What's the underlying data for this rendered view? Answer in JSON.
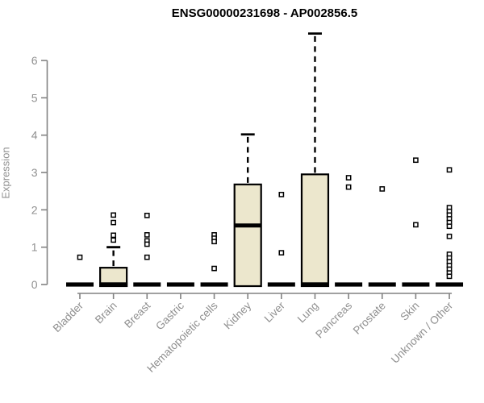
{
  "title": "ENSG00000231698 - AP002856.5",
  "chart_data": {
    "type": "boxplot",
    "title": "ENSG00000231698 - AP002856.5",
    "xlabel": "",
    "ylabel": "Expression",
    "ylim": [
      0,
      6.8
    ],
    "yticks": [
      0,
      1,
      2,
      3,
      4,
      5,
      6
    ],
    "grid": false,
    "legend": "none",
    "categories": [
      "Bladder",
      "Brain",
      "Breast",
      "Gastric",
      "Hematopoietic cells",
      "Kidney",
      "Liver",
      "Lung",
      "Pancreas",
      "Prostate",
      "Skin",
      "Unknown / Other"
    ],
    "boxes": [
      {
        "category": "Bladder",
        "q1": 0,
        "median": 0,
        "q3": 0,
        "whisker_low": 0,
        "whisker_high": 0,
        "outliers": [
          0.73
        ]
      },
      {
        "category": "Brain",
        "q1": 0,
        "median": 0,
        "q3": 0.45,
        "whisker_low": 0,
        "whisker_high": 1.0,
        "outliers": [
          1.86,
          1.66,
          1.32,
          1.19
        ]
      },
      {
        "category": "Breast",
        "q1": 0,
        "median": 0,
        "q3": 0,
        "whisker_low": 0,
        "whisker_high": 0,
        "outliers": [
          1.85,
          1.33,
          1.17,
          1.08,
          0.73
        ]
      },
      {
        "category": "Gastric",
        "q1": 0,
        "median": 0,
        "q3": 0,
        "whisker_low": 0,
        "whisker_high": 0,
        "outliers": []
      },
      {
        "category": "Hematopoietic cells",
        "q1": 0,
        "median": 0,
        "q3": 0,
        "whisker_low": 0,
        "whisker_high": 0,
        "outliers": [
          1.33,
          1.24,
          1.15,
          0.43
        ]
      },
      {
        "category": "Kidney",
        "q1": 0,
        "median": 1.58,
        "q3": 2.68,
        "whisker_low": 0,
        "whisker_high": 4.02,
        "outliers": []
      },
      {
        "category": "Liver",
        "q1": 0,
        "median": 0,
        "q3": 0,
        "whisker_low": 0,
        "whisker_high": 0,
        "outliers": [
          2.41,
          0.85
        ]
      },
      {
        "category": "Lung",
        "q1": 0,
        "median": 0,
        "q3": 2.95,
        "whisker_low": 0,
        "whisker_high": 6.72,
        "outliers": []
      },
      {
        "category": "Pancreas",
        "q1": 0,
        "median": 0,
        "q3": 0,
        "whisker_low": 0,
        "whisker_high": 0,
        "outliers": [
          2.86,
          2.61
        ]
      },
      {
        "category": "Prostate",
        "q1": 0,
        "median": 0,
        "q3": 0,
        "whisker_low": 0,
        "whisker_high": 0,
        "outliers": [
          2.56
        ]
      },
      {
        "category": "Skin",
        "q1": 0,
        "median": 0,
        "q3": 0,
        "whisker_low": 0,
        "whisker_high": 0,
        "outliers": [
          3.33,
          1.6
        ]
      },
      {
        "category": "Unknown / Other",
        "q1": 0,
        "median": 0,
        "q3": 0,
        "whisker_low": 0,
        "whisker_high": 0,
        "outliers": [
          3.07,
          2.06,
          1.96,
          1.86,
          1.76,
          1.66,
          1.56,
          1.29,
          0.81,
          0.71,
          0.61,
          0.51,
          0.41,
          0.31,
          0.22
        ]
      }
    ],
    "colors": {
      "box_fill": "#ECE7CD",
      "box_stroke": "#000000",
      "median": "#000000",
      "outlier_fill": "#FFFFFF",
      "axis": "#828282",
      "tick_text": "#8F8F8F",
      "title_text": "#000000",
      "background": "#FFFFFF"
    }
  }
}
